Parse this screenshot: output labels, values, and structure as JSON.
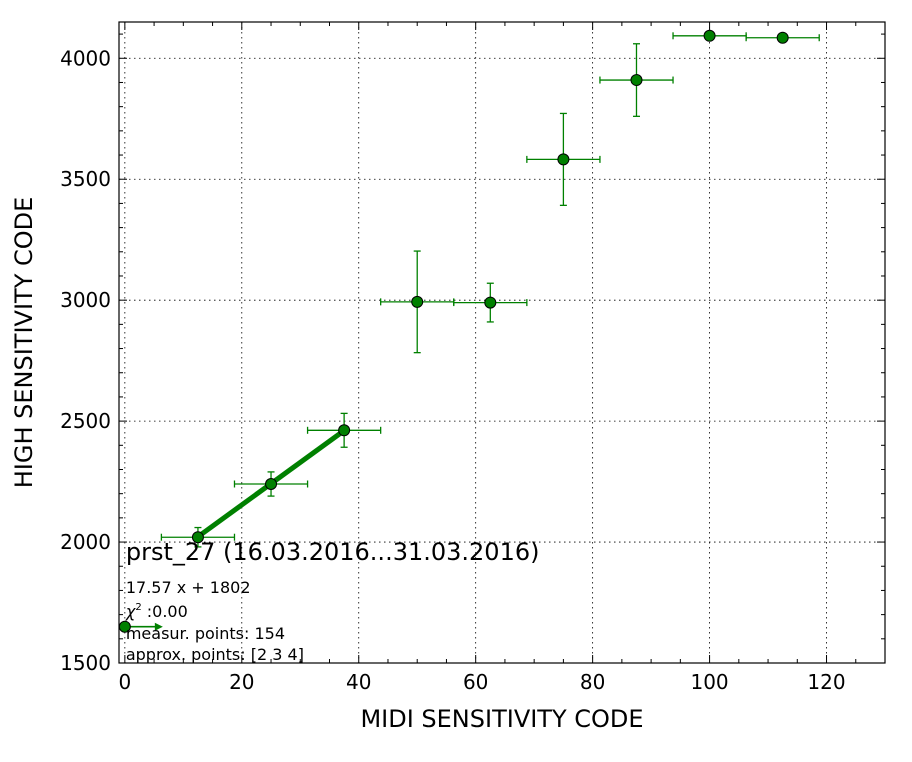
{
  "chart_data": {
    "type": "scatter",
    "xlabel": "MIDI SENSITIVITY CODE",
    "ylabel": "HIGH SENSITIVITY CODE",
    "xlim": [
      -1,
      130
    ],
    "ylim": [
      1500,
      4150
    ],
    "xticks": [
      0,
      20,
      40,
      60,
      80,
      100,
      120
    ],
    "yticks": [
      1500,
      2000,
      2500,
      3000,
      3500,
      4000
    ],
    "grid": true,
    "color": "#008000",
    "marker_fill": "#008000",
    "points": [
      {
        "x": 12.5,
        "y": 2020,
        "xerr": 6.25,
        "yerr": 40
      },
      {
        "x": 25,
        "y": 2240,
        "xerr": 6.25,
        "yerr": 50
      },
      {
        "x": 37.5,
        "y": 2462,
        "xerr": 6.25,
        "yerr": 70
      },
      {
        "x": 50,
        "y": 2993,
        "xerr": 6.25,
        "yerr": 210
      },
      {
        "x": 62.5,
        "y": 2990,
        "xerr": 6.25,
        "yerr": 80
      },
      {
        "x": 75,
        "y": 3582,
        "xerr": 6.25,
        "yerr": 190
      },
      {
        "x": 87.5,
        "y": 3910,
        "xerr": 6.25,
        "yerr": 150
      },
      {
        "x": 100,
        "y": 4093,
        "xerr": 6.25,
        "yerr": 0
      },
      {
        "x": 112.5,
        "y": 4085,
        "xerr": 6.25,
        "yerr": 0
      }
    ],
    "fit_line": {
      "x": [
        12.5,
        37.5
      ],
      "y": [
        2022,
        2461
      ]
    },
    "intercept_marker": {
      "x": 0,
      "y": 1650,
      "arrow_to_x": 6.5
    },
    "annotations": {
      "title": "prst_27 (16.03.2016...31.03.2016)",
      "equation": "17.57 x + 1802",
      "chi2_symbol": "χ",
      "chi2_exp": "2",
      "chi2_value": " :0.00",
      "measur_points": "measur. points: 154",
      "approx_points": "approx. points: [2 3 4]"
    }
  }
}
